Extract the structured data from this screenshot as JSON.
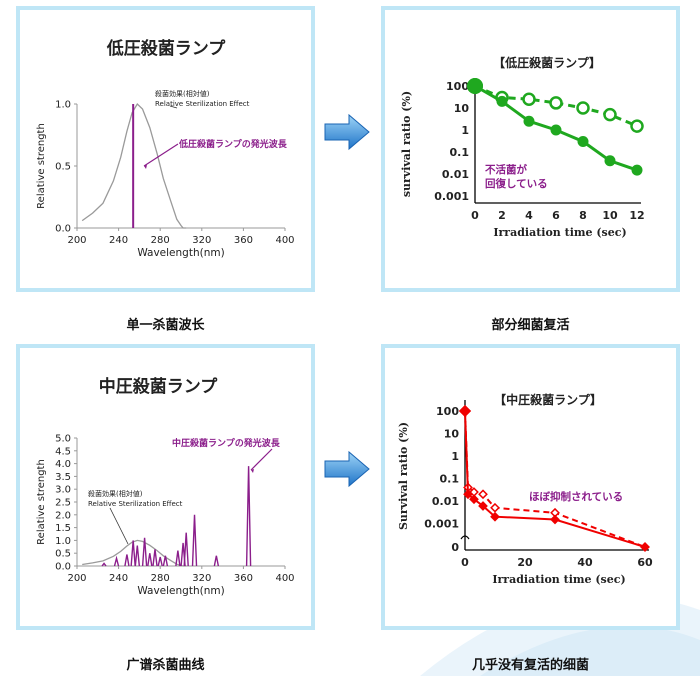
{
  "captions": {
    "top_left": "单一杀菌波长",
    "top_right": "部分细菌复活",
    "bottom_left": "广谱杀菌曲线",
    "bottom_right": "几乎没有复活的细菌"
  },
  "colors": {
    "panel_border": "#bfe6f6",
    "purple": "#8b1e8b",
    "gray": "#9a9a9a",
    "green": "#1fa81f",
    "red": "#f00000",
    "arrow": "#2f86d6"
  },
  "chart_data": [
    {
      "type": "line",
      "title": "低圧殺菌ランプ",
      "xlabel": "Wavelength(nm)",
      "ylabel": "Relative strength",
      "xlim": [
        200,
        400
      ],
      "ylim": [
        0,
        1.0
      ],
      "xticks": [
        "200",
        "240",
        "280",
        "320",
        "360",
        "400"
      ],
      "yticks": [
        "0.0",
        "0.5",
        "1.0"
      ],
      "series": [
        {
          "name": "殺菌効果(相対値) Relative Sterilization Effect",
          "x": [
            205,
            215,
            225,
            235,
            242,
            248,
            253,
            258,
            263,
            270,
            277,
            283,
            290,
            296,
            300,
            302,
            305
          ],
          "y": [
            0.06,
            0.12,
            0.2,
            0.38,
            0.57,
            0.78,
            0.93,
            1.0,
            0.96,
            0.81,
            0.6,
            0.4,
            0.22,
            0.07,
            0.02,
            0.0,
            0.0
          ]
        },
        {
          "name": "低圧殺菌ランプの発光波長",
          "x": [
            254
          ],
          "y": [
            1.0
          ]
        }
      ],
      "annotations": {
        "curve_label_1": "殺菌効果(相対値)",
        "curve_label_2": "Relative Sterilization Effect",
        "lamp_label": "低圧殺菌ランプの発光波長"
      }
    },
    {
      "type": "line",
      "title": "【低圧殺菌ランプ】",
      "xlabel": "Irradiation time (sec)",
      "ylabel": "survival ratio (%)",
      "xlim": [
        0,
        12
      ],
      "xticks": [
        "0",
        "2",
        "4",
        "6",
        "8",
        "10",
        "12"
      ],
      "yticks": [
        "100",
        "10",
        "1",
        "0.1",
        "0.01",
        "0.001"
      ],
      "log_scale": true,
      "series": [
        {
          "name": "",
          "x": [
            0,
            2,
            4,
            6,
            8,
            10,
            12
          ],
          "y": [
            100,
            30,
            25,
            17,
            10,
            5,
            1.5
          ]
        },
        {
          "name": "",
          "x": [
            0,
            2,
            4,
            6,
            8,
            10,
            12
          ],
          "y": [
            100,
            20,
            2.5,
            1,
            0.3,
            0.04,
            0.015
          ]
        }
      ],
      "annotations": {
        "note_line1": "不活菌が",
        "note_line2": "回復している"
      }
    },
    {
      "type": "line",
      "title": "中圧殺菌ランプ",
      "xlabel": "Wavelength(nm)",
      "ylabel": "Relative strength",
      "xlim": [
        200,
        400
      ],
      "ylim": [
        0,
        5.0
      ],
      "xticks": [
        "200",
        "240",
        "280",
        "320",
        "360",
        "400"
      ],
      "yticks": [
        "0.0",
        "0.5",
        "1.0",
        "1.5",
        "2.0",
        "2.5",
        "3.0",
        "3.5",
        "4.0",
        "4.5",
        "5.0"
      ],
      "series": [
        {
          "name": "殺菌効果(相対値) Relative Sterilization Effect",
          "x": [
            205,
            215,
            225,
            235,
            242,
            248,
            253,
            258,
            263,
            270,
            277,
            283,
            290,
            296,
            300,
            302,
            305
          ],
          "y": [
            0.06,
            0.12,
            0.2,
            0.38,
            0.57,
            0.78,
            0.93,
            1.0,
            0.96,
            0.81,
            0.6,
            0.4,
            0.22,
            0.07,
            0.02,
            0.0,
            0.0
          ]
        },
        {
          "name": "中圧殺菌ランプの発光波長",
          "peaks_x": [
            226,
            238,
            248,
            254,
            258,
            265,
            270,
            275,
            280,
            285,
            297,
            302,
            305,
            313,
            334,
            365
          ],
          "peaks_y": [
            0.1,
            0.3,
            0.45,
            1.0,
            0.8,
            1.1,
            0.5,
            0.65,
            0.35,
            0.4,
            0.6,
            0.9,
            1.3,
            2.0,
            0.4,
            3.9
          ]
        }
      ],
      "annotations": {
        "curve_label_1": "殺菌効果(相対値)",
        "curve_label_2": "Relative Sterilization Effect",
        "lamp_label": "中圧殺菌ランプの発光波長"
      }
    },
    {
      "type": "line",
      "title": "【中圧殺菌ランプ】",
      "xlabel": "Irradiation time (sec)",
      "ylabel": "Survival ratio (%)",
      "xlim": [
        0,
        60
      ],
      "xticks": [
        "0",
        "20",
        "40",
        "60"
      ],
      "yticks": [
        "100",
        "10",
        "1",
        "0.1",
        "0.01",
        "0.001",
        "0"
      ],
      "log_scale": true,
      "series": [
        {
          "name": "",
          "x": [
            0,
            1,
            3,
            6,
            10,
            30,
            60
          ],
          "y": [
            100,
            0.04,
            0.025,
            0.02,
            0.005,
            0.003,
            0
          ]
        },
        {
          "name": "",
          "x": [
            0,
            1,
            3,
            6,
            10,
            30,
            60
          ],
          "y": [
            100,
            0.02,
            0.012,
            0.006,
            0.002,
            0.0015,
            0
          ]
        }
      ],
      "annotations": {
        "note": "ほぼ抑制されている"
      }
    }
  ]
}
